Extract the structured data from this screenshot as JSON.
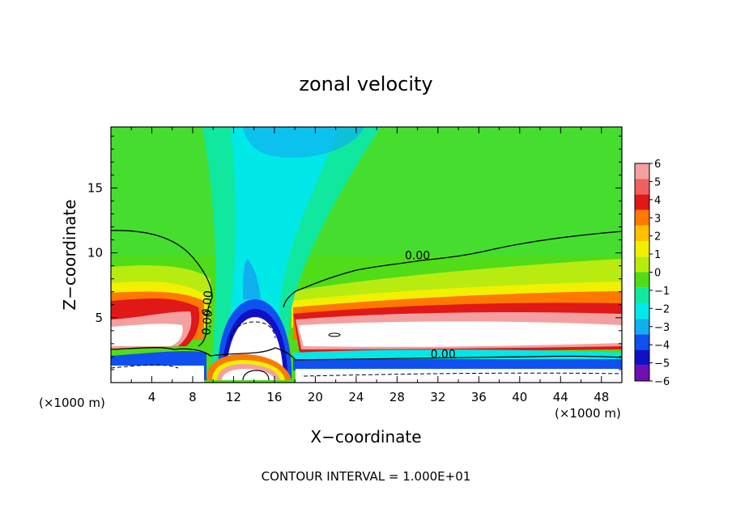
{
  "chart_data": {
    "type": "heatmap",
    "title": "zonal velocity",
    "xlabel": "X−coordinate",
    "ylabel": "Z−coordinate",
    "x_unit_left": "(×1000 m)",
    "x_unit_right": "(×1000 m)",
    "xlim": [
      0,
      50
    ],
    "ylim": [
      0,
      19.7
    ],
    "x_ticks": [
      4,
      8,
      12,
      16,
      20,
      24,
      28,
      32,
      36,
      40,
      44,
      48
    ],
    "y_ticks": [
      5,
      10,
      15
    ],
    "x_tick_labels": [
      "4",
      "8",
      "12",
      "16",
      "20",
      "24",
      "28",
      "32",
      "36",
      "40",
      "44",
      "48"
    ],
    "y_tick_labels": [
      "5",
      "10",
      "15"
    ],
    "footer": "CONTOUR INTERVAL = 1.000E+01",
    "colorbar": {
      "levels": [
        6,
        5,
        4,
        3,
        2,
        1,
        0,
        -1,
        -2,
        -3,
        -4,
        -5,
        -6
      ],
      "labels": [
        "6",
        "5",
        "4",
        "3",
        "2",
        "1",
        "0",
        "−1",
        "−2",
        "−3",
        "−4",
        "−5",
        "−6"
      ],
      "colors": [
        "#f4a0a0",
        "#f06060",
        "#e01818",
        "#ff7800",
        "#ffc000",
        "#f0f000",
        "#b8ec10",
        "#50dc18",
        "#10e8a0",
        "#00e8e8",
        "#10b0f0",
        "#1050f0",
        "#1010c8",
        "#7010b0"
      ]
    },
    "contour_labels": [
      {
        "text": "0.00",
        "x": 30,
        "z": 9.5
      },
      {
        "text": "0.00",
        "x": 32.5,
        "z": 1.9
      },
      {
        "text": "0.00",
        "x": 9.8,
        "z": 6.1
      },
      {
        "text": "0.00",
        "x": 9.8,
        "z": 4.6
      }
    ]
  }
}
